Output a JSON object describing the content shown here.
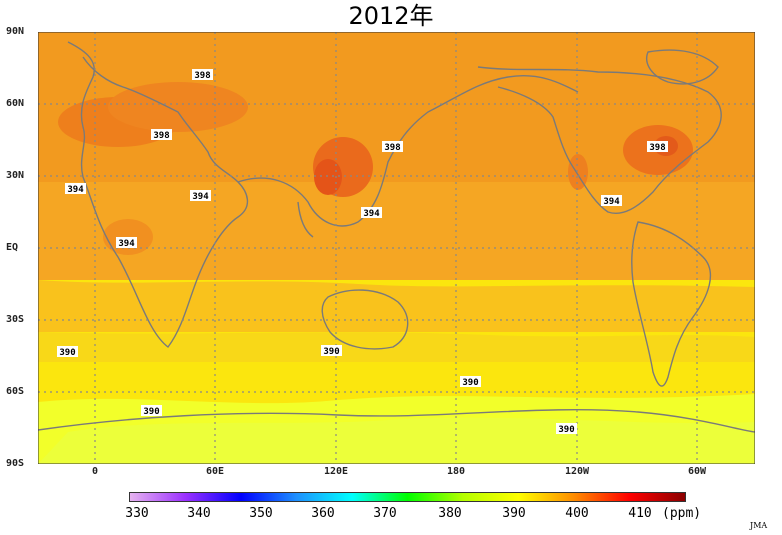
{
  "title": "2012年",
  "lat_labels": [
    "90N",
    "60N",
    "30N",
    "EQ",
    "30S",
    "60S",
    "90S"
  ],
  "lon_labels": [
    "0",
    "60E",
    "120E",
    "180",
    "120W",
    "60W"
  ],
  "contour_labels": [
    "398",
    "398",
    "398",
    "398",
    "394",
    "394",
    "394",
    "394",
    "394",
    "390",
    "390",
    "390",
    "390",
    "390"
  ],
  "colorbar": {
    "ticks": [
      "330",
      "340",
      "350",
      "360",
      "370",
      "380",
      "390",
      "400",
      "410"
    ],
    "unit": "(ppm)"
  },
  "credit": "JMA",
  "colors": {
    "high": "#f07e1a",
    "mid_high": "#f5a623",
    "mid": "#f9c21c",
    "low": "#fbe60e",
    "lowest": "#f2ff2a",
    "hotspot": "#e85a1a",
    "coast": "#7a7a7a",
    "grid": "#888888"
  }
}
